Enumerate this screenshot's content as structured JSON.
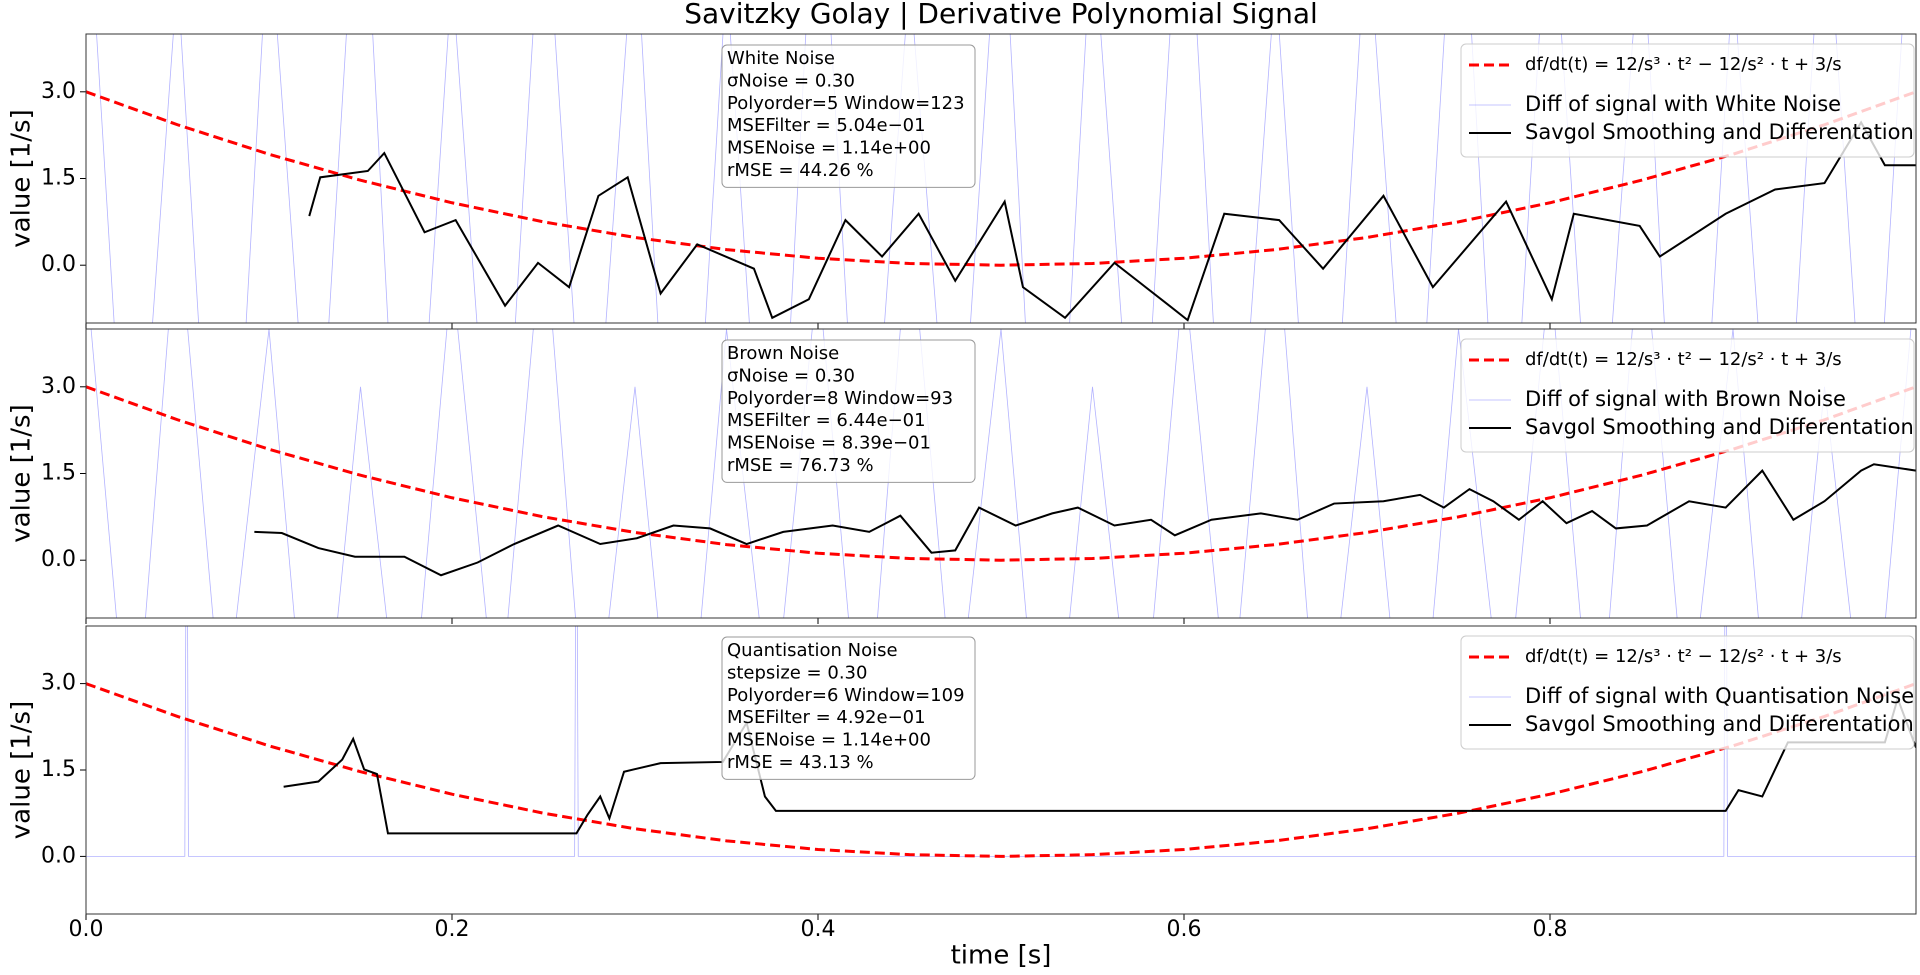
{
  "chart_data": [
    {
      "type": "line",
      "title": "Savitzky Golay | Derivative Polynomial Signal",
      "ylabel": "value [1/s]",
      "xlim": [
        0,
        1
      ],
      "xticks": [
        {
          "value": 0,
          "label": "0.0"
        },
        {
          "value": 0.2,
          "label": "0.2"
        },
        {
          "value": 0.4,
          "label": "0.4"
        },
        {
          "value": 0.6,
          "label": "0.6"
        },
        {
          "value": 0.8,
          "label": "0.8"
        }
      ],
      "xticklabels": false,
      "ylim": [
        -1,
        4
      ],
      "yticks": [
        {
          "value": 0,
          "label": "0.0"
        },
        {
          "value": 1.5,
          "label": "1.5"
        },
        {
          "value": 3,
          "label": "3.0"
        }
      ],
      "legend": "upper right",
      "annotation": [
        "White Noise",
        "σNoise = 0.30",
        "Polyorder=5 Window=123",
        "MSEFilter = 5.04e−01",
        "MSENoise = 1.14e+00",
        "rMSE = 44.26 %"
      ],
      "series": [
        {
          "name": "df/dt(t) = 12/s³ · t² − 12/s² · t + 3/s",
          "color": "#ff0000",
          "style": "dashed",
          "x": [
            0,
            0.05,
            0.1,
            0.15,
            0.2,
            0.25,
            0.3,
            0.35,
            0.4,
            0.45,
            0.5,
            0.55,
            0.6,
            0.65,
            0.7,
            0.75,
            0.8,
            0.85,
            0.9,
            0.95,
            1
          ],
          "values": [
            3,
            2.43,
            1.92,
            1.47,
            1.08,
            0.75,
            0.48,
            0.27,
            0.12,
            0.03,
            0,
            0.03,
            0.12,
            0.27,
            0.48,
            0.75,
            1.08,
            1.47,
            1.92,
            2.43,
            3
          ]
        },
        {
          "name": "Diff of signal with White Noise",
          "color": "#0000ff",
          "style": "thin",
          "x": [
            0,
            0.025,
            0.05,
            0.075,
            0.1,
            0.125,
            0.15,
            0.175,
            0.2,
            0.225,
            0.25,
            0.275,
            0.3,
            0.325,
            0.35,
            0.375,
            0.4,
            0.425,
            0.45,
            0.475,
            0.5,
            0.525,
            0.55,
            0.575,
            0.6,
            0.625,
            0.65,
            0.675,
            0.7,
            0.725,
            0.75,
            0.775,
            0.8,
            0.825,
            0.85,
            0.875,
            0.9,
            0.925,
            0.95,
            0.975,
            1
          ],
          "values": [
            7,
            -6,
            5,
            -8,
            6,
            -5,
            8,
            -7,
            5,
            -6,
            7,
            -5,
            6,
            -8,
            5,
            -7,
            8,
            -6,
            5,
            -5,
            7,
            -8,
            6,
            -5,
            8,
            -6,
            5,
            -7,
            6,
            -5,
            8,
            -6,
            7,
            -5,
            6,
            -8,
            5,
            -6,
            7,
            -5,
            8
          ]
        },
        {
          "name": "Savgol Smoothing and Differentation",
          "color": "#000000",
          "style": "solid",
          "x": [
            0.122,
            0.128,
            0.154,
            0.163,
            0.185,
            0.202,
            0.229,
            0.247,
            0.264,
            0.28,
            0.296,
            0.314,
            0.334,
            0.365,
            0.375,
            0.395,
            0.415,
            0.435,
            0.455,
            0.475,
            0.502,
            0.512,
            0.535,
            0.562,
            0.592,
            0.602,
            0.622,
            0.652,
            0.676,
            0.709,
            0.736,
            0.776,
            0.801,
            0.813,
            0.849,
            0.86,
            0.896,
            0.923,
            0.95,
            0.97,
            0.983,
            1
          ],
          "values": [
            0.85,
            1.52,
            1.63,
            1.94,
            0.57,
            0.78,
            -0.7,
            0.04,
            -0.38,
            1.2,
            1.52,
            -0.49,
            0.36,
            -0.06,
            -0.91,
            -0.59,
            0.78,
            0.15,
            0.89,
            -0.27,
            1.1,
            -0.38,
            -0.91,
            0.04,
            -0.7,
            -0.95,
            0.89,
            0.78,
            -0.06,
            1.2,
            -0.38,
            1.1,
            -0.59,
            0.89,
            0.68,
            0.15,
            0.89,
            1.31,
            1.42,
            2.47,
            1.73,
            1.73
          ]
        }
      ]
    },
    {
      "type": "line",
      "ylabel": "value [1/s]",
      "xlim": [
        0,
        1
      ],
      "xticks": [
        {
          "value": 0,
          "label": "0.0"
        },
        {
          "value": 0.2,
          "label": "0.2"
        },
        {
          "value": 0.4,
          "label": "0.4"
        },
        {
          "value": 0.6,
          "label": "0.6"
        },
        {
          "value": 0.8,
          "label": "0.8"
        }
      ],
      "xticklabels": false,
      "ylim": [
        -1,
        4
      ],
      "yticks": [
        {
          "value": 0,
          "label": "0.0"
        },
        {
          "value": 1.5,
          "label": "1.5"
        },
        {
          "value": 3,
          "label": "3.0"
        }
      ],
      "legend": "upper right",
      "annotation": [
        "Brown Noise",
        "σNoise = 0.30",
        "Polyorder=8 Window=93",
        "MSEFilter = 6.44e−01",
        "MSENoise = 8.39e−01",
        "rMSE = 76.73 %"
      ],
      "series": [
        {
          "name": "df/dt(t) = 12/s³ · t² − 12/s² · t + 3/s",
          "color": "#ff0000",
          "style": "dashed",
          "x": [
            0,
            0.05,
            0.1,
            0.15,
            0.2,
            0.25,
            0.3,
            0.35,
            0.4,
            0.45,
            0.5,
            0.55,
            0.6,
            0.65,
            0.7,
            0.75,
            0.8,
            0.85,
            0.9,
            0.95,
            1
          ],
          "values": [
            3,
            2.43,
            1.92,
            1.47,
            1.08,
            0.75,
            0.48,
            0.27,
            0.12,
            0.03,
            0,
            0.03,
            0.12,
            0.27,
            0.48,
            0.75,
            1.08,
            1.47,
            1.92,
            2.43,
            3
          ]
        },
        {
          "name": "Diff of signal with Brown Noise",
          "color": "#0000ff",
          "style": "thin",
          "x": [
            0,
            0.025,
            0.05,
            0.075,
            0.1,
            0.125,
            0.15,
            0.175,
            0.2,
            0.225,
            0.25,
            0.275,
            0.3,
            0.325,
            0.35,
            0.375,
            0.4,
            0.425,
            0.45,
            0.475,
            0.5,
            0.525,
            0.55,
            0.575,
            0.6,
            0.625,
            0.65,
            0.675,
            0.7,
            0.725,
            0.75,
            0.775,
            0.8,
            0.825,
            0.85,
            0.875,
            0.9,
            0.925,
            0.95,
            0.975,
            1
          ],
          "values": [
            5,
            -4,
            6,
            -3,
            4,
            -5,
            3,
            -4,
            5,
            -3,
            6,
            -4,
            3,
            -5,
            4,
            -3,
            5,
            -4,
            6,
            -3,
            4,
            -5,
            3,
            -4,
            5,
            -3,
            6,
            -4,
            3,
            -5,
            4,
            -3,
            5,
            -4,
            6,
            -3,
            4,
            -5,
            3,
            -4,
            5
          ]
        },
        {
          "name": "Savgol Smoothing and Differentation",
          "color": "#000000",
          "style": "solid",
          "x": [
            0.092,
            0.107,
            0.127,
            0.147,
            0.174,
            0.194,
            0.214,
            0.234,
            0.258,
            0.281,
            0.301,
            0.321,
            0.341,
            0.361,
            0.381,
            0.408,
            0.428,
            0.445,
            0.462,
            0.475,
            0.488,
            0.508,
            0.528,
            0.542,
            0.562,
            0.582,
            0.595,
            0.615,
            0.642,
            0.662,
            0.682,
            0.709,
            0.729,
            0.742,
            0.756,
            0.769,
            0.783,
            0.796,
            0.809,
            0.823,
            0.836,
            0.853,
            0.876,
            0.896,
            0.916,
            0.933,
            0.95,
            0.97,
            0.977,
            1
          ],
          "values": [
            0.49,
            0.47,
            0.21,
            0.06,
            0.06,
            -0.26,
            -0.04,
            0.28,
            0.6,
            0.28,
            0.38,
            0.6,
            0.55,
            0.28,
            0.49,
            0.6,
            0.49,
            0.77,
            0.13,
            0.17,
            0.91,
            0.6,
            0.81,
            0.91,
            0.6,
            0.7,
            0.43,
            0.7,
            0.81,
            0.7,
            0.98,
            1.02,
            1.13,
            0.91,
            1.23,
            1.02,
            0.7,
            1.02,
            0.64,
            0.85,
            0.55,
            0.6,
            1.02,
            0.91,
            1.55,
            0.7,
            1.02,
            1.55,
            1.66,
            1.55
          ]
        }
      ]
    },
    {
      "type": "line",
      "ylabel": "value [1/s]",
      "xlabel": "time [s]",
      "xlim": [
        0,
        1
      ],
      "xticks": [
        {
          "value": 0,
          "label": "0.0"
        },
        {
          "value": 0.2,
          "label": "0.2"
        },
        {
          "value": 0.4,
          "label": "0.4"
        },
        {
          "value": 0.6,
          "label": "0.6"
        },
        {
          "value": 0.8,
          "label": "0.8"
        }
      ],
      "xticklabels": true,
      "ylim": [
        -1,
        4
      ],
      "yticks": [
        {
          "value": 0,
          "label": "0.0"
        },
        {
          "value": 1.5,
          "label": "1.5"
        },
        {
          "value": 3,
          "label": "3.0"
        }
      ],
      "legend": "upper right",
      "annotation": [
        "Quantisation Noise",
        "stepsize = 0.30",
        "Polyorder=6 Window=109",
        "MSEFilter = 4.92e−01",
        "MSENoise = 1.14e+00",
        "rMSE = 43.13 %"
      ],
      "series": [
        {
          "name": "df/dt(t) = 12/s³ · t² − 12/s² · t + 3/s",
          "color": "#ff0000",
          "style": "dashed",
          "x": [
            0,
            0.05,
            0.1,
            0.15,
            0.2,
            0.25,
            0.3,
            0.35,
            0.4,
            0.45,
            0.5,
            0.55,
            0.6,
            0.65,
            0.7,
            0.75,
            0.8,
            0.85,
            0.9,
            0.95,
            1
          ],
          "values": [
            3,
            2.43,
            1.92,
            1.47,
            1.08,
            0.75,
            0.48,
            0.27,
            0.12,
            0.03,
            0,
            0.03,
            0.12,
            0.27,
            0.48,
            0.75,
            1.08,
            1.47,
            1.92,
            2.43,
            3
          ]
        },
        {
          "name": "Diff of signal with Quantisation Noise",
          "color": "#0000ff",
          "style": "thin",
          "x": [
            0,
            0.054,
            0.055,
            0.056,
            0.267,
            0.268,
            0.269,
            0.895,
            0.896,
            0.897,
            1
          ],
          "values": [
            0,
            0,
            8,
            0,
            0,
            8,
            0,
            0,
            8,
            0,
            0
          ]
        },
        {
          "name": "Savgol Smoothing and Differentation",
          "color": "#000000",
          "style": "solid",
          "x": [
            0.108,
            0.127,
            0.14,
            0.146,
            0.152,
            0.159,
            0.165,
            0.268,
            0.274,
            0.281,
            0.286,
            0.294,
            0.314,
            0.348,
            0.361,
            0.371,
            0.377,
            0.896,
            0.903,
            0.916,
            0.93,
            0.983,
            0.99,
            1
          ],
          "values": [
            1.21,
            1.3,
            1.68,
            2.04,
            1.51,
            1.43,
            0.4,
            0.4,
            0.72,
            1.04,
            0.66,
            1.47,
            1.62,
            1.64,
            2.32,
            1.04,
            0.79,
            0.79,
            1.15,
            1.04,
            1.98,
            1.98,
            2.74,
            1.89
          ]
        }
      ]
    }
  ]
}
